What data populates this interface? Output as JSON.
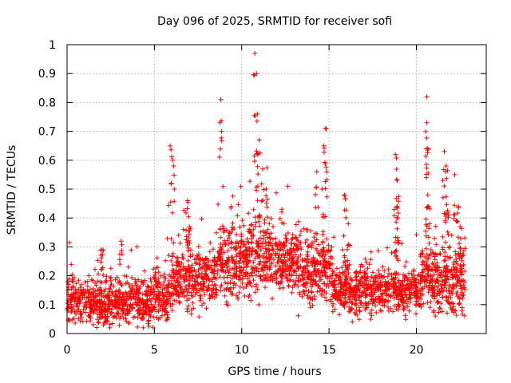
{
  "chart_data": {
    "type": "scatter",
    "title": "Day 096 of 2025, SRMTID for receiver sofi",
    "xlabel": "GPS time / hours",
    "ylabel": "SRMTID / TECUs",
    "xlim": [
      0,
      24
    ],
    "ylim": [
      0,
      1
    ],
    "xticks": [
      0,
      5,
      10,
      15,
      20
    ],
    "yticks": [
      0,
      0.1,
      0.2,
      0.3,
      0.4,
      0.5,
      0.6,
      0.7,
      0.8,
      0.9,
      1
    ],
    "xtick_labels": [
      "0",
      "5",
      "10",
      "15",
      "20"
    ],
    "ytick_labels": [
      "0",
      "0.1",
      "0.2",
      "0.3",
      "0.4",
      "0.5",
      "0.6",
      "0.7",
      "0.8",
      "0.9",
      "1"
    ],
    "grid": true,
    "marker": "+",
    "series_color": "#ff0000",
    "background_profile": {
      "description_hours": [
        0,
        24
      ],
      "segments": [
        {
          "x0": 0.0,
          "x1": 5.0,
          "base": 0.11,
          "spread": 0.06
        },
        {
          "x0": 5.0,
          "x1": 6.0,
          "base": 0.13,
          "spread": 0.06
        },
        {
          "x0": 6.0,
          "x1": 8.6,
          "base": 0.19,
          "spread": 0.08
        },
        {
          "x0": 8.6,
          "x1": 10.0,
          "base": 0.25,
          "spread": 0.1
        },
        {
          "x0": 10.0,
          "x1": 11.6,
          "base": 0.27,
          "spread": 0.1
        },
        {
          "x0": 11.6,
          "x1": 13.2,
          "base": 0.25,
          "spread": 0.09
        },
        {
          "x0": 13.2,
          "x1": 15.2,
          "base": 0.22,
          "spread": 0.09
        },
        {
          "x0": 15.2,
          "x1": 18.5,
          "base": 0.15,
          "spread": 0.06
        },
        {
          "x0": 18.5,
          "x1": 20.2,
          "base": 0.15,
          "spread": 0.06
        },
        {
          "x0": 20.2,
          "x1": 22.8,
          "base": 0.18,
          "spread": 0.08
        }
      ]
    },
    "peaks": [
      {
        "x": 2.0,
        "y": 0.29
      },
      {
        "x": 3.1,
        "y": 0.32
      },
      {
        "x": 5.9,
        "y": 0.65
      },
      {
        "x": 6.05,
        "y": 0.6
      },
      {
        "x": 6.9,
        "y": 0.46
      },
      {
        "x": 7.0,
        "y": 0.37
      },
      {
        "x": 8.8,
        "y": 0.81
      },
      {
        "x": 8.85,
        "y": 0.7
      },
      {
        "x": 9.4,
        "y": 0.44
      },
      {
        "x": 10.75,
        "y": 0.97
      },
      {
        "x": 10.85,
        "y": 0.9
      },
      {
        "x": 10.9,
        "y": 0.76
      },
      {
        "x": 11.0,
        "y": 0.67
      },
      {
        "x": 11.2,
        "y": 0.57
      },
      {
        "x": 11.4,
        "y": 0.5
      },
      {
        "x": 12.3,
        "y": 0.43
      },
      {
        "x": 14.3,
        "y": 0.56
      },
      {
        "x": 14.6,
        "y": 0.5
      },
      {
        "x": 14.8,
        "y": 0.71
      },
      {
        "x": 14.7,
        "y": 0.65
      },
      {
        "x": 15.9,
        "y": 0.48
      },
      {
        "x": 16.1,
        "y": 0.38
      },
      {
        "x": 18.8,
        "y": 0.62
      },
      {
        "x": 18.9,
        "y": 0.53
      },
      {
        "x": 18.9,
        "y": 0.44
      },
      {
        "x": 20.6,
        "y": 0.82
      },
      {
        "x": 20.6,
        "y": 0.73
      },
      {
        "x": 20.65,
        "y": 0.64
      },
      {
        "x": 20.7,
        "y": 0.44
      },
      {
        "x": 21.6,
        "y": 0.63
      },
      {
        "x": 21.7,
        "y": 0.58
      },
      {
        "x": 21.8,
        "y": 0.42
      },
      {
        "x": 22.2,
        "y": 0.55
      },
      {
        "x": 22.4,
        "y": 0.44
      },
      {
        "x": 22.5,
        "y": 0.37
      }
    ]
  }
}
